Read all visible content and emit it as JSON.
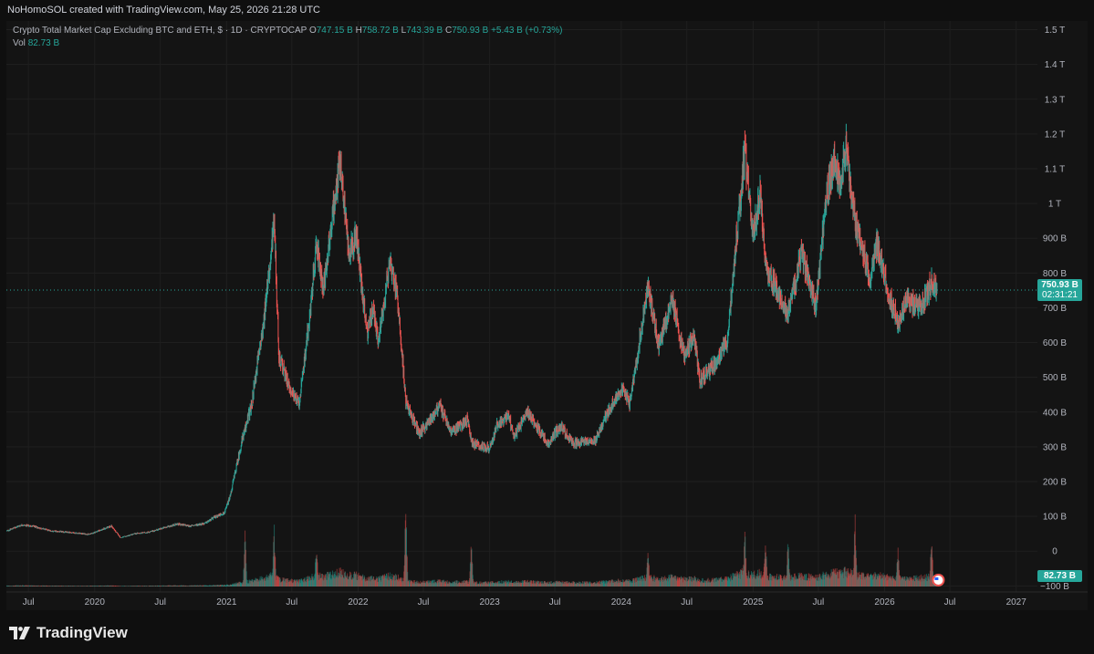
{
  "header": {
    "caption": "NoHomoSOL created with TradingView.com, May 25, 2026 21:28 UTC"
  },
  "legend": {
    "symbol": "Crypto Total Market Cap Excluding BTC and ETH, $ · 1D · CRYPTOCAP",
    "open_label": "O",
    "open": "747.15 B",
    "high_label": "H",
    "high": "758.72 B",
    "low_label": "L",
    "low": "743.39 B",
    "close_label": "C",
    "close": "750.93 B",
    "change": "+5.43 B (+0.73%)",
    "vol_label": "Vol",
    "vol": "82.73 B"
  },
  "price_tag": {
    "price": "750.93 B",
    "countdown": "02:31:21"
  },
  "vol_tag": "82.73 B",
  "brand": {
    "name": "TradingView"
  },
  "colors": {
    "up": "#26a69a",
    "down": "#ef5350",
    "background": "#141414",
    "text": "#b2b5be"
  },
  "chart_data": {
    "type": "candlestick",
    "title": "Crypto Total Market Cap Excluding BTC and ETH, $ · 1D · CRYPTOCAP",
    "y_unit": "USD",
    "y_scale": "linear",
    "y_tick_labels": [
      "1.5 T",
      "1.4 T",
      "1.3 T",
      "1.2 T",
      "1.1 T",
      "1 T",
      "900 B",
      "800 B",
      "700 B",
      "600 B",
      "500 B",
      "400 B",
      "300 B",
      "200 B",
      "100 B",
      "0",
      "−100 B"
    ],
    "y_tick_values": [
      1500,
      1400,
      1300,
      1200,
      1100,
      1000,
      900,
      800,
      700,
      600,
      500,
      400,
      300,
      200,
      100,
      0,
      -100
    ],
    "ylim_billions": [
      -170,
      1525
    ],
    "x_tick_labels": [
      "Jul",
      "2020",
      "Jul",
      "2021",
      "Jul",
      "2022",
      "Jul",
      "2023",
      "Jul",
      "2024",
      "Jul",
      "2025",
      "Jul",
      "2026",
      "Jul",
      "2027"
    ],
    "x_tick_dates": [
      "2019-07-01",
      "2020-01-01",
      "2020-07-01",
      "2021-01-01",
      "2021-07-01",
      "2022-01-01",
      "2022-07-01",
      "2023-01-01",
      "2023-07-01",
      "2024-01-01",
      "2024-07-01",
      "2025-01-01",
      "2025-07-01",
      "2026-01-01",
      "2026-07-01",
      "2027-01-01"
    ],
    "xlim": [
      "2019-05-01",
      "2027-03-01"
    ],
    "price_path_billions": [
      [
        "2019-05-01",
        58
      ],
      [
        "2019-06-10",
        75
      ],
      [
        "2019-07-10",
        72
      ],
      [
        "2019-09-01",
        58
      ],
      [
        "2019-11-01",
        53
      ],
      [
        "2019-12-15",
        48
      ],
      [
        "2020-02-15",
        72
      ],
      [
        "2020-03-12",
        38
      ],
      [
        "2020-04-20",
        50
      ],
      [
        "2020-06-01",
        55
      ],
      [
        "2020-08-15",
        78
      ],
      [
        "2020-09-20",
        72
      ],
      [
        "2020-11-01",
        80
      ],
      [
        "2020-12-01",
        100
      ],
      [
        "2020-12-25",
        110
      ],
      [
        "2021-01-10",
        160
      ],
      [
        "2021-02-10",
        310
      ],
      [
        "2021-03-10",
        420
      ],
      [
        "2021-04-15",
        680
      ],
      [
        "2021-05-12",
        960
      ],
      [
        "2021-05-25",
        560
      ],
      [
        "2021-06-20",
        480
      ],
      [
        "2021-07-20",
        420
      ],
      [
        "2021-08-20",
        690
      ],
      [
        "2021-09-06",
        880
      ],
      [
        "2021-09-25",
        760
      ],
      [
        "2021-11-05",
        1080
      ],
      [
        "2021-11-10",
        1130
      ],
      [
        "2021-12-05",
        860
      ],
      [
        "2021-12-25",
        910
      ],
      [
        "2022-01-25",
        620
      ],
      [
        "2022-02-10",
        700
      ],
      [
        "2022-02-25",
        600
      ],
      [
        "2022-03-29",
        840
      ],
      [
        "2022-04-20",
        720
      ],
      [
        "2022-05-12",
        430
      ],
      [
        "2022-06-18",
        340
      ],
      [
        "2022-07-15",
        370
      ],
      [
        "2022-08-14",
        420
      ],
      [
        "2022-09-15",
        340
      ],
      [
        "2022-11-01",
        380
      ],
      [
        "2022-11-10",
        310
      ],
      [
        "2022-12-30",
        295
      ],
      [
        "2023-01-20",
        360
      ],
      [
        "2023-02-20",
        390
      ],
      [
        "2023-03-10",
        330
      ],
      [
        "2023-04-15",
        400
      ],
      [
        "2023-06-10",
        310
      ],
      [
        "2023-07-15",
        360
      ],
      [
        "2023-08-20",
        310
      ],
      [
        "2023-10-20",
        320
      ],
      [
        "2023-11-15",
        380
      ],
      [
        "2023-12-15",
        440
      ],
      [
        "2024-01-05",
        470
      ],
      [
        "2024-01-23",
        420
      ],
      [
        "2024-03-14",
        760
      ],
      [
        "2024-04-13",
        590
      ],
      [
        "2024-05-20",
        720
      ],
      [
        "2024-06-24",
        560
      ],
      [
        "2024-07-20",
        620
      ],
      [
        "2024-08-05",
        490
      ],
      [
        "2024-09-10",
        530
      ],
      [
        "2024-10-20",
        600
      ],
      [
        "2024-11-10",
        850
      ],
      [
        "2024-12-08",
        1150
      ],
      [
        "2024-12-30",
        900
      ],
      [
        "2025-01-20",
        1040
      ],
      [
        "2025-02-03",
        820
      ],
      [
        "2025-03-01",
        760
      ],
      [
        "2025-04-07",
        680
      ],
      [
        "2025-05-15",
        860
      ],
      [
        "2025-06-22",
        700
      ],
      [
        "2025-07-20",
        1000
      ],
      [
        "2025-08-14",
        1130
      ],
      [
        "2025-08-30",
        1040
      ],
      [
        "2025-09-15",
        1180
      ],
      [
        "2025-10-10",
        940
      ],
      [
        "2025-10-30",
        880
      ],
      [
        "2025-11-20",
        780
      ],
      [
        "2025-12-10",
        880
      ],
      [
        "2026-01-15",
        720
      ],
      [
        "2026-02-06",
        660
      ],
      [
        "2026-03-01",
        720
      ],
      [
        "2026-04-10",
        700
      ],
      [
        "2026-05-10",
        770
      ],
      [
        "2026-05-25",
        751
      ]
    ],
    "volume_spikes_billions": [
      [
        "2021-02-20",
        300
      ],
      [
        "2021-05-12",
        330
      ],
      [
        "2021-09-06",
        250
      ],
      [
        "2022-05-12",
        460
      ],
      [
        "2022-11-10",
        260
      ],
      [
        "2024-03-14",
        250
      ],
      [
        "2024-12-08",
        330
      ],
      [
        "2025-02-03",
        330
      ],
      [
        "2025-04-07",
        260
      ],
      [
        "2025-10-10",
        390
      ],
      [
        "2026-02-06",
        240
      ],
      [
        "2026-05-10",
        290
      ]
    ],
    "last": {
      "date": "2026-05-25",
      "open": 747.15,
      "high": 758.72,
      "low": 743.39,
      "close": 750.93,
      "change": 5.43,
      "change_pct": 0.73,
      "volume": 82.73
    }
  }
}
